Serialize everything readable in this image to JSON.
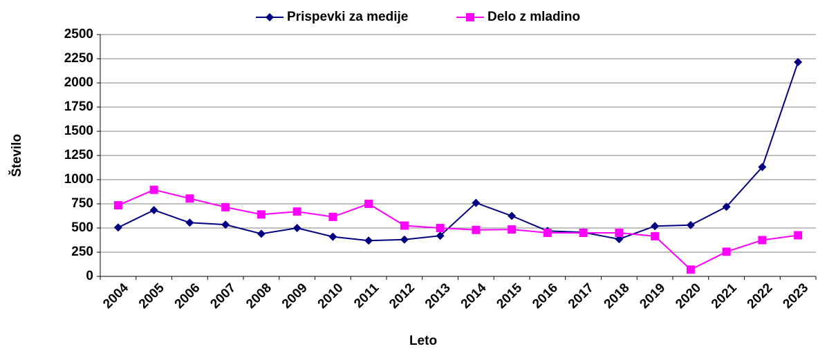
{
  "chart_data": {
    "type": "line",
    "x_label": "Leto",
    "y_label": "Število",
    "categories": [
      "2004",
      "2005",
      "2006",
      "2007",
      "2008",
      "2009",
      "2010",
      "2011",
      "2012",
      "2013",
      "2014",
      "2015",
      "2016",
      "2017",
      "2018",
      "2019",
      "2020",
      "2021",
      "2022",
      "2023"
    ],
    "series": [
      {
        "name": "Prispevki za medije",
        "color": "#000080",
        "marker": "diamond",
        "values": [
          505,
          685,
          555,
          535,
          440,
          500,
          410,
          370,
          380,
          420,
          760,
          625,
          470,
          455,
          385,
          520,
          530,
          720,
          1130,
          2215
        ]
      },
      {
        "name": "Delo z mladino",
        "color": "#ff00ff",
        "marker": "square",
        "values": [
          735,
          895,
          805,
          715,
          640,
          670,
          615,
          750,
          525,
          500,
          480,
          485,
          450,
          450,
          450,
          415,
          70,
          255,
          375,
          425
        ]
      }
    ],
    "ylim": [
      0,
      2500
    ],
    "yticks": [
      0,
      250,
      500,
      750,
      1000,
      1250,
      1500,
      1750,
      2000,
      2250,
      2500
    ],
    "grid": true,
    "legend": "top"
  }
}
